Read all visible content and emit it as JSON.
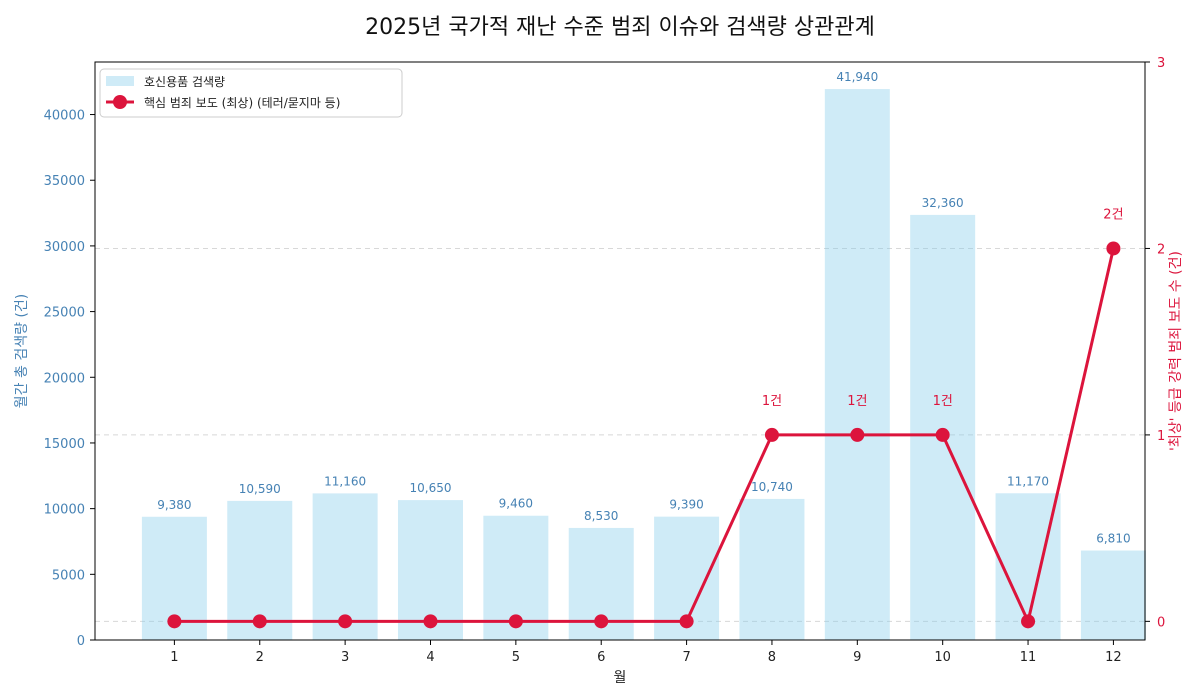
{
  "chart_data": {
    "type": "bar+line",
    "title": "2025년 국가적 재난 수준 범죄 이슈와 검색량 상관관계",
    "xlabel": "월",
    "ylabel_left": "월간 총 검색량 (건)",
    "ylabel_right": "'최상' 등급 강력 범죄 보도 수 (건)",
    "categories": [
      "1",
      "2",
      "3",
      "4",
      "5",
      "6",
      "7",
      "8",
      "9",
      "10",
      "11",
      "12"
    ],
    "left_axis": {
      "ylim": [
        0,
        44000
      ],
      "ticks": [
        0,
        5000,
        10000,
        15000,
        20000,
        25000,
        30000,
        35000,
        40000
      ],
      "tick_labels": [
        "0",
        "5000",
        "10000",
        "15000",
        "20000",
        "25000",
        "30000",
        "35000",
        "40000"
      ]
    },
    "right_axis": {
      "ylim": [
        -0.1,
        3
      ],
      "ticks": [
        0,
        1,
        2,
        3
      ],
      "tick_labels": [
        "0",
        "1",
        "2",
        "3"
      ]
    },
    "series": [
      {
        "name": "호신용품 검색량",
        "kind": "bar",
        "axis": "left",
        "color": "#87ceeb",
        "values": [
          9380,
          10590,
          11160,
          10650,
          9460,
          8530,
          9390,
          10740,
          41940,
          32360,
          11170,
          6810
        ],
        "labels": [
          "9,380",
          "10,590",
          "11,160",
          "10,650",
          "9,460",
          "8,530",
          "9,390",
          "10,740",
          "41,940",
          "32,360",
          "11,170",
          "6,810"
        ]
      },
      {
        "name": "핵심 범죄 보도 (최상) (테러/묻지마 등)",
        "kind": "line",
        "axis": "right",
        "color": "#dc143c",
        "values": [
          0,
          0,
          0,
          0,
          0,
          0,
          0,
          1,
          1,
          1,
          0,
          2
        ],
        "labels": [
          "",
          "",
          "",
          "",
          "",
          "",
          "",
          "1건",
          "1건",
          "1건",
          "",
          "2건"
        ]
      }
    ],
    "legend_position": "top-left",
    "grid": "horizontal dashed (right axis)",
    "colors": {
      "left_axis": "#4682b4",
      "right_axis": "#dc143c",
      "bar": "#87ceeb",
      "line": "#dc143c"
    }
  }
}
